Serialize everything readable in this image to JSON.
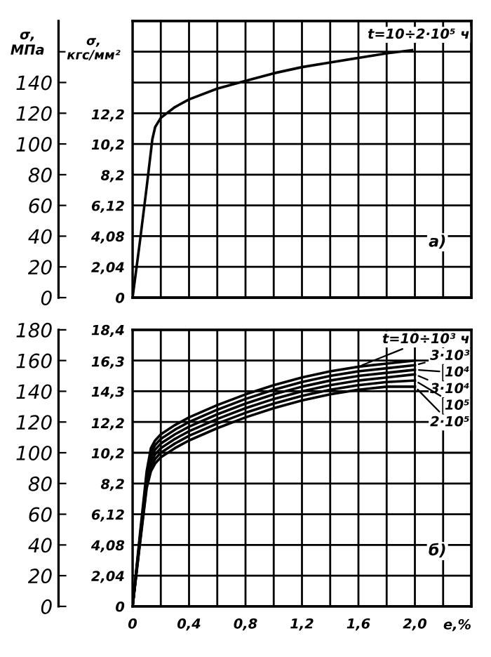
{
  "chart_data": [
    {
      "type": "line",
      "x": [
        0,
        0.05,
        0.1,
        0.14,
        0.16,
        0.2,
        0.3,
        0.4,
        0.6,
        0.8,
        1.0,
        1.2,
        1.4,
        1.6,
        1.8,
        1.98
      ],
      "series": [
        {
          "name": "t=10÷2·10⁵ ч",
          "color": "#000000",
          "values": [
            0,
            35,
            72,
            103,
            111,
            117,
            124,
            129,
            136,
            141,
            146,
            150,
            153,
            156,
            159,
            161
          ]
        }
      ],
      "xlim": [
        0,
        2.4
      ],
      "xticks": [
        {
          "value": 0,
          "label": null
        },
        {
          "value": 0.2,
          "label": null
        },
        {
          "value": 0.4,
          "label": null
        },
        {
          "value": 0.6,
          "label": null
        },
        {
          "value": 0.8,
          "label": null
        },
        {
          "value": 1.0,
          "label": null
        },
        {
          "value": 1.2,
          "label": null
        },
        {
          "value": 1.4,
          "label": null
        },
        {
          "value": 1.6,
          "label": null
        },
        {
          "value": 1.8,
          "label": null
        },
        {
          "value": 2.0,
          "label": null
        },
        {
          "value": 2.2,
          "label": null
        }
      ],
      "ylim": [
        0,
        180
      ],
      "yticks": [
        0,
        20,
        40,
        60,
        80,
        100,
        120,
        140,
        {
          "value": 160,
          "label": null
        }
      ],
      "y2lim": [
        0,
        18.4
      ],
      "y2ticks": [
        0,
        {
          "value": 2.04,
          "label": "2,04"
        },
        {
          "value": 4.08,
          "label": "4,08"
        },
        {
          "value": 6.12,
          "label": "6,12"
        },
        {
          "value": 8.16,
          "label": "8,2"
        },
        {
          "value": 10.2,
          "label": "10,2"
        },
        {
          "value": 12.2,
          "label": "12,2"
        }
      ],
      "ylabel": "σ,\nМПа",
      "y2label": "σ,\nкгс/мм²",
      "tick_labels": "y",
      "grid": true,
      "legend": "top right",
      "annotations": [
        "а)"
      ]
    },
    {
      "type": "line",
      "x": [
        0,
        0.05,
        0.1,
        0.13,
        0.16,
        0.2,
        0.3,
        0.4,
        0.6,
        0.8,
        1.0,
        1.2,
        1.4,
        1.6,
        1.8,
        2.0
      ],
      "series": [
        {
          "name": "t=10÷10³ ч",
          "color": "#000000",
          "values": [
            0,
            45,
            88,
            103,
            108,
            112,
            118,
            123,
            131,
            138,
            144,
            149,
            153,
            156,
            158,
            160
          ]
        },
        {
          "name": "3·10³",
          "color": "#000000",
          "values": [
            0,
            43,
            85,
            100,
            105,
            109,
            115,
            120,
            128,
            135,
            141,
            146,
            150,
            153,
            155,
            157
          ]
        },
        {
          "name": "10⁴",
          "color": "#000000",
          "values": [
            0,
            42,
            83,
            97,
            102,
            106,
            112,
            117,
            125,
            132,
            138,
            143,
            147,
            150,
            152,
            154
          ]
        },
        {
          "name": "3·10⁴",
          "color": "#000000",
          "values": [
            0,
            41,
            81,
            94,
            99,
            103,
            109,
            114,
            122,
            129,
            135,
            140,
            144,
            147,
            149,
            151
          ]
        },
        {
          "name": "10⁵",
          "color": "#000000",
          "values": [
            0,
            40,
            79,
            91,
            96,
            100,
            106,
            111,
            119,
            126,
            132,
            137,
            141,
            144,
            146,
            147
          ]
        },
        {
          "name": "2·10⁵",
          "color": "#000000",
          "values": [
            0,
            39,
            77,
            88,
            93,
            97,
            103,
            108,
            116,
            123,
            129,
            134,
            138,
            141,
            143,
            143
          ]
        }
      ],
      "xlim": [
        0,
        2.4
      ],
      "xticks": [
        0,
        {
          "value": 0.2,
          "label": null
        },
        {
          "value": 0.4,
          "label": "0,4"
        },
        {
          "value": 0.6,
          "label": null
        },
        {
          "value": 0.8,
          "label": "0,8"
        },
        {
          "value": 1.0,
          "label": null
        },
        {
          "value": 1.2,
          "label": "1,2"
        },
        {
          "value": 1.4,
          "label": null
        },
        {
          "value": 1.6,
          "label": "1,6"
        },
        {
          "value": 1.8,
          "label": null
        },
        {
          "value": 2.0,
          "label": "2,0"
        },
        {
          "value": 2.2,
          "label": null
        }
      ],
      "xlabel": "е,%",
      "ylim": [
        0,
        180
      ],
      "yticks": [
        0,
        20,
        40,
        60,
        80,
        100,
        120,
        140,
        160,
        180
      ],
      "y2lim": [
        0,
        18.4
      ],
      "y2ticks": [
        0,
        {
          "value": 2.04,
          "label": "2,04"
        },
        {
          "value": 4.08,
          "label": "4,08"
        },
        {
          "value": 6.12,
          "label": "6,12"
        },
        {
          "value": 8.16,
          "label": "8,2"
        },
        {
          "value": 10.2,
          "label": "10,2"
        },
        {
          "value": 12.2,
          "label": "12,2"
        },
        {
          "value": 14.3,
          "label": "14,3"
        },
        {
          "value": 16.3,
          "label": "16,3"
        },
        {
          "value": 18.4,
          "label": "18,4"
        }
      ],
      "grid": true,
      "legend": "top right",
      "annotations": [
        "б)"
      ]
    }
  ]
}
